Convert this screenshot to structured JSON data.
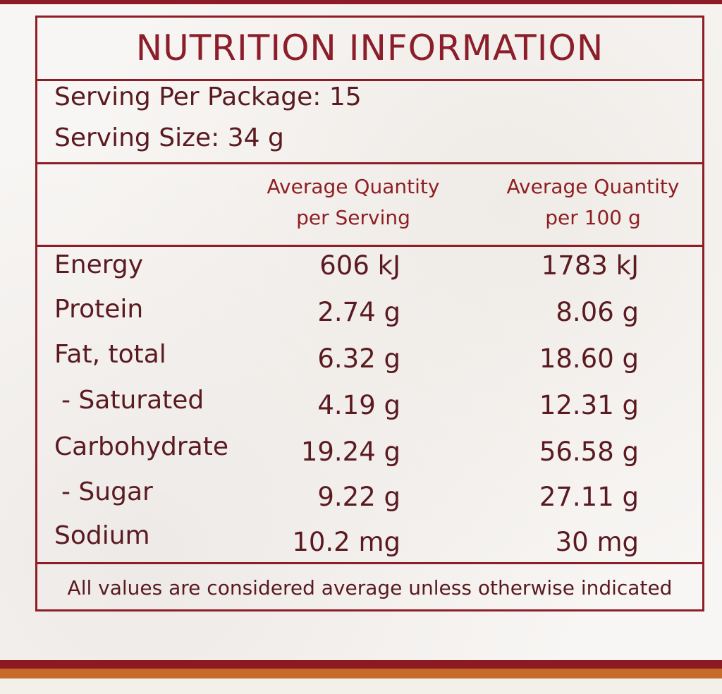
{
  "title": "NUTRITION INFORMATION",
  "serving": {
    "per_package": "Serving Per Package: 15",
    "size": "Serving Size: 34 g"
  },
  "columns": {
    "per_serving_line1": "Average Quantity",
    "per_serving_line2": "per Serving",
    "per_100g_line1": "Average Quantity",
    "per_100g_line2": "per 100 g"
  },
  "rows": [
    {
      "label": "Energy",
      "per_serving": "606 kJ",
      "per_100g": "1783 kJ"
    },
    {
      "label": "Protein",
      "per_serving": "2.74 g",
      "per_100g": "8.06 g"
    },
    {
      "label": "Fat, total",
      "per_serving": "6.32 g",
      "per_100g": "18.60 g"
    },
    {
      "label": "- Saturated",
      "per_serving": "4.19 g",
      "per_100g": "12.31 g"
    },
    {
      "label": "Carbohydrate",
      "per_serving": "19.24 g",
      "per_100g": "56.58 g"
    },
    {
      "label": "- Sugar",
      "per_serving": "9.22 g",
      "per_100g": "27.11 g"
    },
    {
      "label": "Sodium",
      "per_serving": "10.2 mg",
      "per_100g": "30 mg"
    }
  ],
  "footer_note": "All values are considered average unless otherwise indicated",
  "colors": {
    "border": "#8e1d26",
    "text": "#5a1a20",
    "heading": "#8c1d2a",
    "band_red": "#8b1a22",
    "band_orange": "#c86a28"
  }
}
